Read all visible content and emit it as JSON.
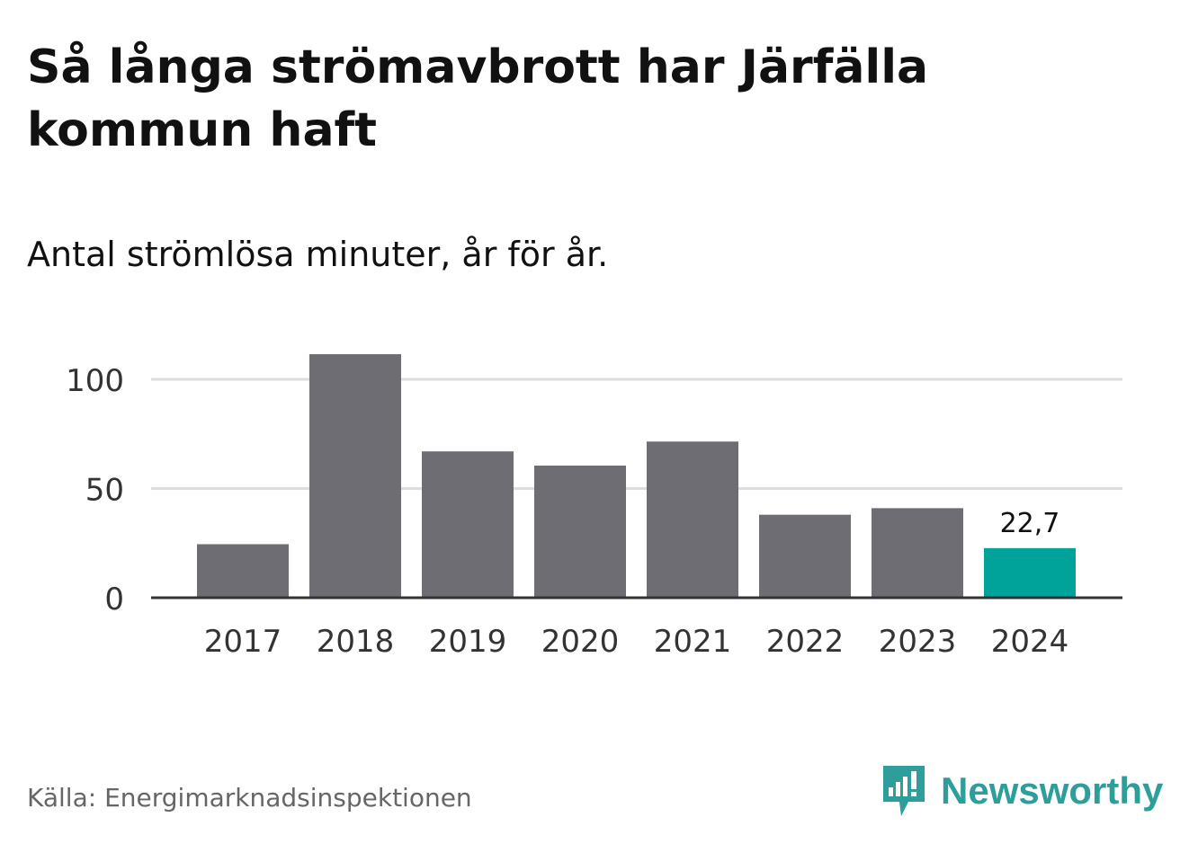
{
  "header": {
    "title": "Så långa strömavbrott har Järfälla kommun haft",
    "subtitle": "Antal strömlösa minuter, år för år."
  },
  "chart_data": {
    "type": "bar",
    "title": "Så långa strömavbrott har Järfälla kommun haft",
    "subtitle": "Antal strömlösa minuter, år för år.",
    "categories": [
      "2017",
      "2018",
      "2019",
      "2020",
      "2021",
      "2022",
      "2023",
      "2024"
    ],
    "values": [
      24.5,
      111.5,
      67,
      60.5,
      71.5,
      38,
      41,
      22.7
    ],
    "highlight_index": 7,
    "data_labels": [
      {
        "index": 7,
        "text": "22,7"
      }
    ],
    "xlabel": "",
    "ylabel": "",
    "ylim": [
      0,
      110
    ],
    "y_ticks": [
      0,
      50,
      100
    ],
    "y_tick_labels": [
      "0",
      "50",
      "100"
    ],
    "grid": true,
    "colors": {
      "bar": "#6e6d73",
      "highlight": "#00a39a",
      "grid": "#dddddd",
      "axis": "#333333"
    }
  },
  "footer": {
    "source": "Källa: Energimarknadsinspektionen",
    "brand": "Newsworthy",
    "brand_color": "#2e9e9a",
    "logo_icon": "newsworthy-logo-icon"
  }
}
